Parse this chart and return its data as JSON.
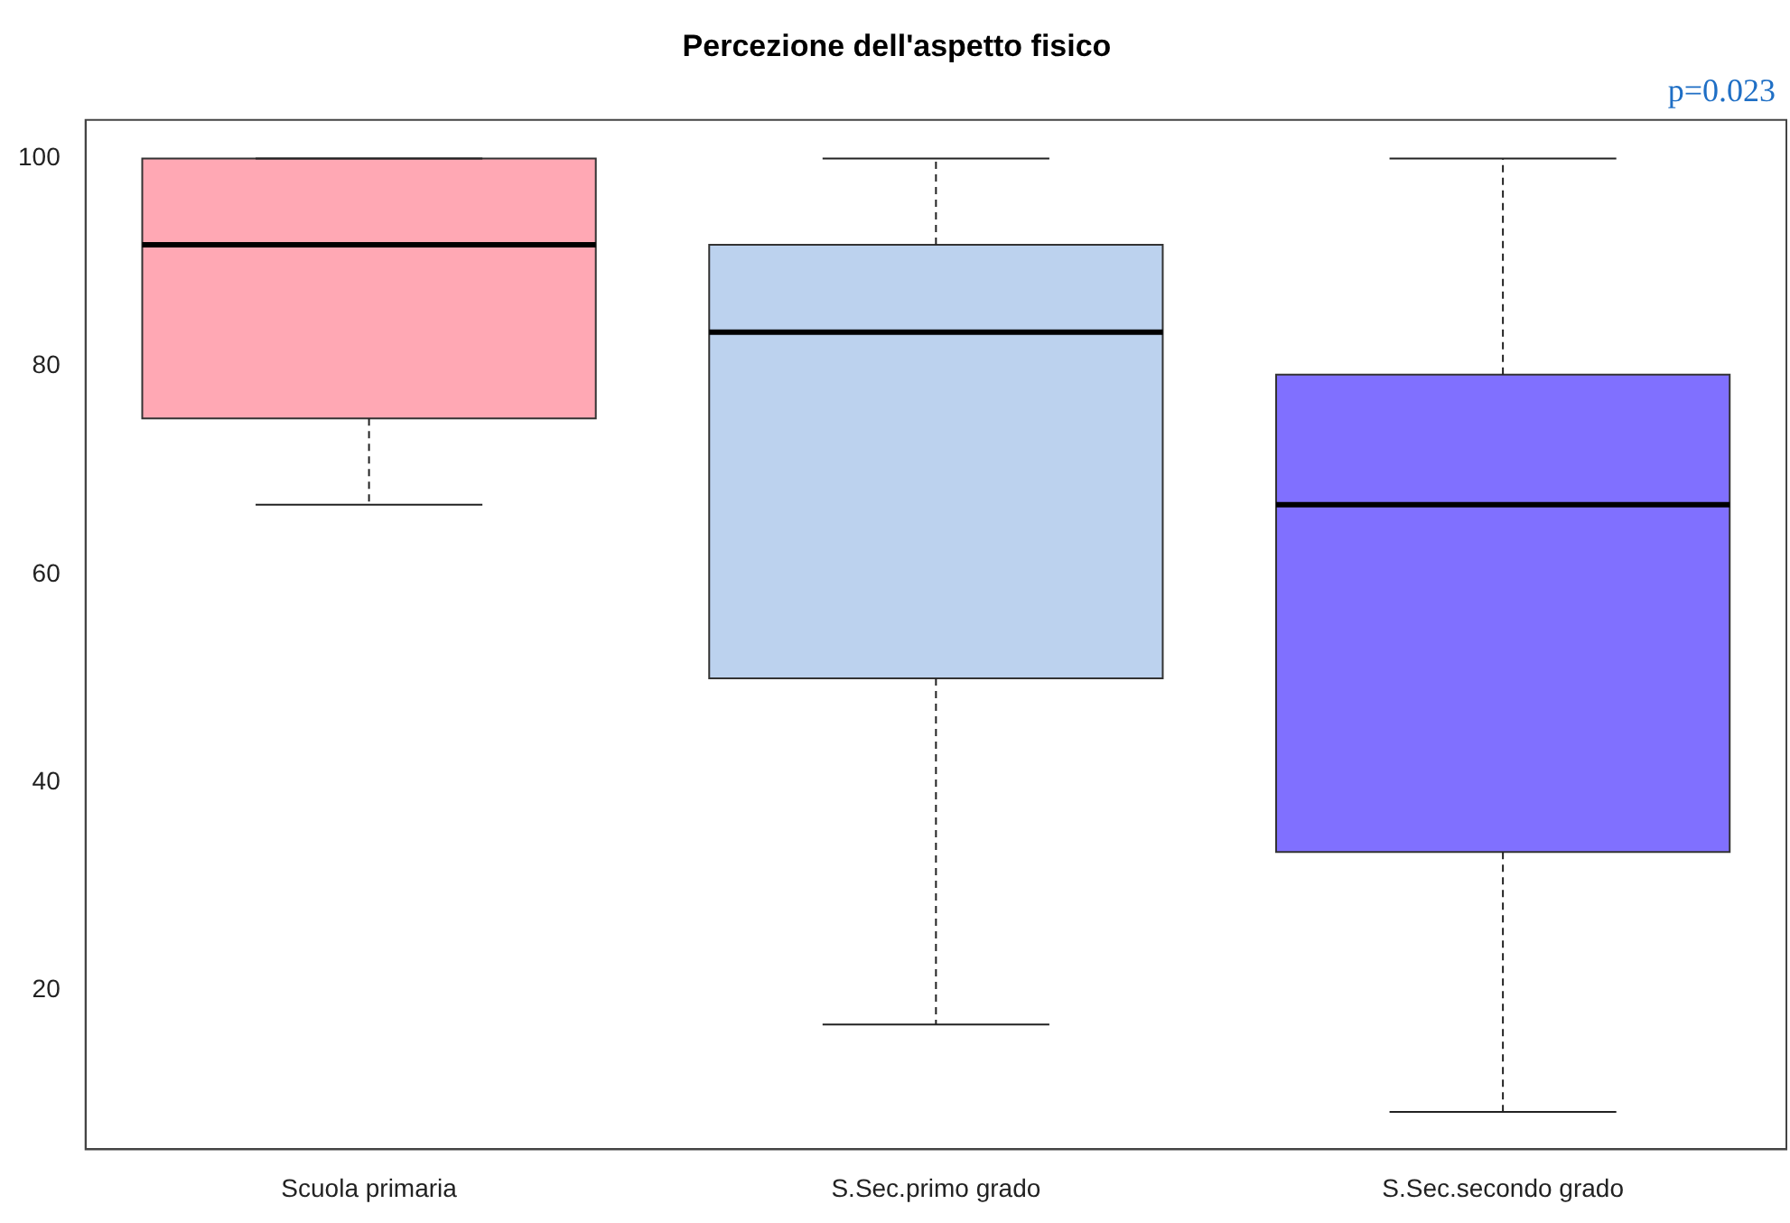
{
  "chart_data": {
    "type": "box",
    "title": "Percezione dell'aspetto fisico",
    "annotations": [
      "p=0.023"
    ],
    "categories": [
      "Scuola primaria",
      "S.Sec.primo grado",
      "S.Sec.secondo grado"
    ],
    "boxes": [
      {
        "low": 66.7,
        "q1": 75,
        "median": 91.7,
        "q3": 100,
        "high": 100
      },
      {
        "low": 16.7,
        "q1": 50,
        "median": 83.3,
        "q3": 91.7,
        "high": 100
      },
      {
        "low": 8.3,
        "q1": 33.3,
        "median": 66.7,
        "q3": 79.2,
        "high": 100
      }
    ],
    "colors": [
      "#ffa8b4",
      "#bcd2ee",
      "#8070ff"
    ],
    "ylim": [
      4.7,
      103.7
    ],
    "yticks": [
      20,
      40,
      60,
      80,
      100
    ],
    "grid": false,
    "legend": false
  }
}
